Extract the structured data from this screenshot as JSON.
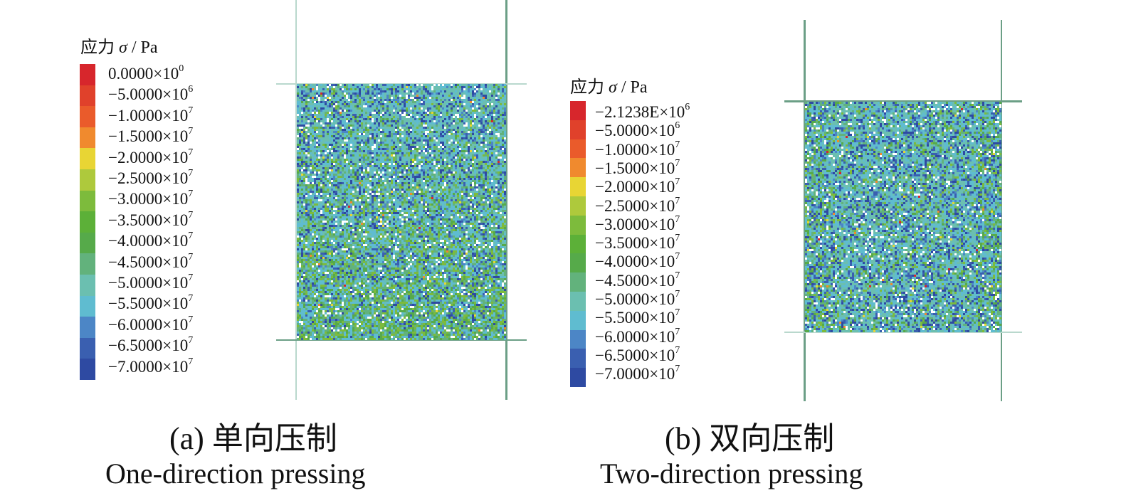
{
  "colors": {
    "scale": [
      "#d7262c",
      "#e0412b",
      "#ea5b2b",
      "#f08a2e",
      "#e8d534",
      "#aec93c",
      "#7dbb3c",
      "#5cb038",
      "#56aa4a",
      "#62b27c",
      "#6bbfb0",
      "#5fbcd0",
      "#4c86c6",
      "#3a5fb0",
      "#2e4aa2"
    ],
    "guide_line": "#6b9f86",
    "guide_line_light": "#b9d8cd"
  },
  "panel_a": {
    "legend_title": {
      "prefix": "应力 ",
      "symbol": "σ",
      "suffix": " / Pa"
    },
    "legend_labels": [
      {
        "mantissa": "0.0000×10",
        "exponent": "0"
      },
      {
        "mantissa": "−5.0000×10",
        "exponent": "6"
      },
      {
        "mantissa": "−1.0000×10",
        "exponent": "7"
      },
      {
        "mantissa": "−1.5000×10",
        "exponent": "7"
      },
      {
        "mantissa": "−2.0000×10",
        "exponent": "7"
      },
      {
        "mantissa": "−2.5000×10",
        "exponent": "7"
      },
      {
        "mantissa": "−3.0000×10",
        "exponent": "7"
      },
      {
        "mantissa": "−3.5000×10",
        "exponent": "7"
      },
      {
        "mantissa": "−4.0000×10",
        "exponent": "7"
      },
      {
        "mantissa": "−4.5000×10",
        "exponent": "7"
      },
      {
        "mantissa": "−5.0000×10",
        "exponent": "7"
      },
      {
        "mantissa": "−5.5000×10",
        "exponent": "7"
      },
      {
        "mantissa": "−6.0000×10",
        "exponent": "7"
      },
      {
        "mantissa": "−6.5000×10",
        "exponent": "7"
      },
      {
        "mantissa": "−7.0000×10",
        "exponent": "7"
      }
    ],
    "caption_cn": "(a) 单向压制",
    "caption_en": "One-direction pressing"
  },
  "panel_b": {
    "legend_title": {
      "prefix": "应力 ",
      "symbol": "σ",
      "suffix": " / Pa"
    },
    "legend_labels": [
      {
        "mantissa": "−2.1238E×10",
        "exponent": "6"
      },
      {
        "mantissa": "−5.0000×10",
        "exponent": "6"
      },
      {
        "mantissa": "−1.0000×10",
        "exponent": "7"
      },
      {
        "mantissa": "−1.5000×10",
        "exponent": "7"
      },
      {
        "mantissa": "−2.0000×10",
        "exponent": "7"
      },
      {
        "mantissa": "−2.5000×10",
        "exponent": "7"
      },
      {
        "mantissa": "−3.0000×10",
        "exponent": "7"
      },
      {
        "mantissa": "−3.5000×10",
        "exponent": "7"
      },
      {
        "mantissa": "−4.0000×10",
        "exponent": "7"
      },
      {
        "mantissa": "−4.5000×10",
        "exponent": "7"
      },
      {
        "mantissa": "−5.0000×10",
        "exponent": "7"
      },
      {
        "mantissa": "−5.5000×10",
        "exponent": "7"
      },
      {
        "mantissa": "−6.0000×10",
        "exponent": "7"
      },
      {
        "mantissa": "−6.5000×10",
        "exponent": "7"
      },
      {
        "mantissa": "−7.0000×10",
        "exponent": "7"
      }
    ],
    "caption_cn": "(b) 双向压制",
    "caption_en": "Two-direction pressing"
  }
}
